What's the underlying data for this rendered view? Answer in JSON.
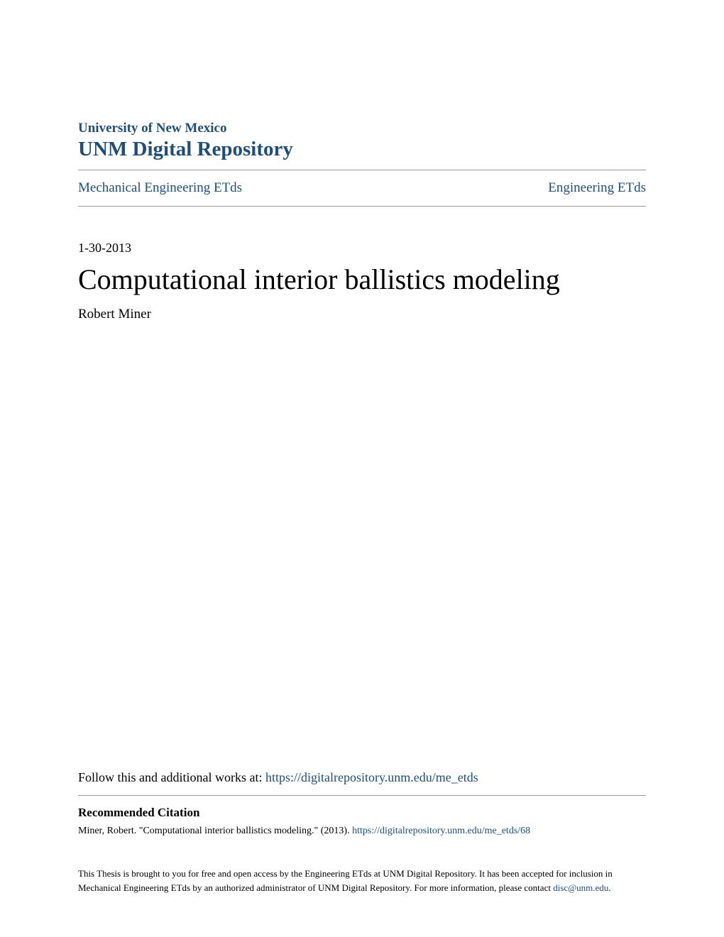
{
  "header": {
    "university": "University of New Mexico",
    "repository": "UNM Digital Repository"
  },
  "breadcrumb": {
    "left": "Mechanical Engineering ETds",
    "right": "Engineering ETds"
  },
  "paper": {
    "date": "1-30-2013",
    "title": "Computational interior ballistics modeling",
    "author": "Robert Miner"
  },
  "follow": {
    "prefix": "Follow this and additional works at: ",
    "url": "https://digitalrepository.unm.edu/me_etds"
  },
  "citation": {
    "heading": "Recommended Citation",
    "text_prefix": "Miner, Robert. \"Computational interior ballistics modeling.\" (2013). ",
    "url": "https://digitalrepository.unm.edu/me_etds/68"
  },
  "disclaimer": {
    "text_prefix": "This Thesis is brought to you for free and open access by the Engineering ETds at UNM Digital Repository. It has been accepted for inclusion in Mechanical Engineering ETds by an authorized administrator of UNM Digital Repository. For more information, please contact ",
    "email": "disc@unm.edu",
    "text_suffix": "."
  },
  "colors": {
    "link_color": "#1f4e79",
    "text_color": "#000000",
    "divider_color": "#999999",
    "background": "#ffffff"
  }
}
